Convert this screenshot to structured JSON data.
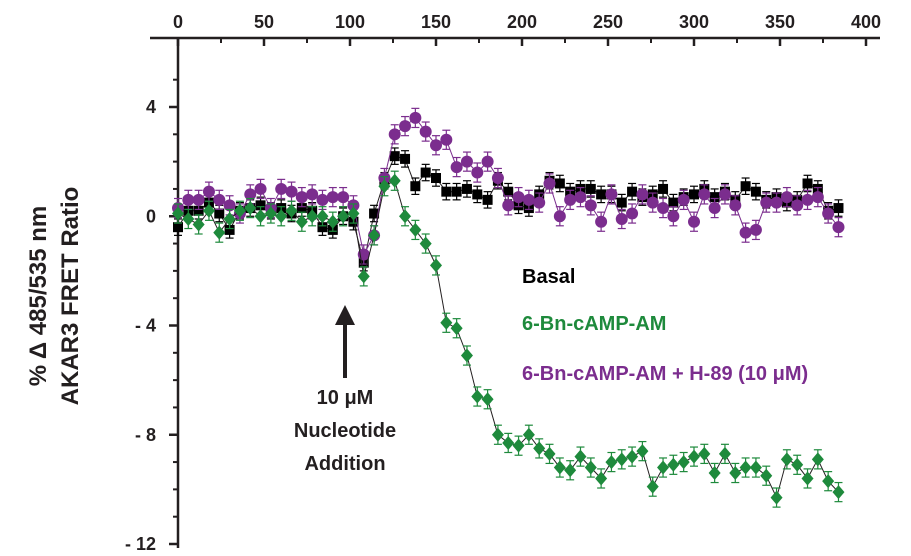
{
  "chart_data": {
    "type": "scatter",
    "xlabel": "",
    "ylabel_lines": [
      "% Δ 485/535 nm",
      "AKAR3 FRET Ratio"
    ],
    "xlim": [
      0,
      400
    ],
    "ylim": [
      -12,
      6
    ],
    "x_ticks": [
      0,
      50,
      100,
      150,
      200,
      250,
      300,
      350,
      400
    ],
    "y_ticks": [
      {
        "value": 4,
        "label": "4"
      },
      {
        "value": 0,
        "label": "0"
      },
      {
        "value": -4,
        "label": "- 4"
      },
      {
        "value": -8,
        "label": "- 8"
      },
      {
        "value": -12,
        "label": "- 12"
      }
    ],
    "x_axis_position": "top",
    "grid": false,
    "legend_position": "right",
    "series": [
      {
        "name": "Basal",
        "color": "#000000",
        "marker": "square",
        "error": 0.3,
        "x": [
          0,
          6,
          12,
          18,
          24,
          30,
          36,
          42,
          48,
          54,
          60,
          66,
          72,
          78,
          84,
          90,
          96,
          102,
          108,
          114,
          120,
          126,
          132,
          138,
          144,
          150,
          156,
          162,
          168,
          174,
          180,
          186,
          192,
          198,
          204,
          210,
          216,
          222,
          228,
          234,
          240,
          246,
          252,
          258,
          264,
          270,
          276,
          282,
          288,
          294,
          300,
          306,
          312,
          318,
          324,
          330,
          336,
          342,
          348,
          354,
          360,
          366,
          372,
          378,
          384
        ],
        "y": [
          -0.4,
          0.2,
          0.2,
          0.5,
          0.1,
          -0.5,
          0.2,
          0.3,
          0.4,
          0.2,
          0.3,
          0.1,
          0.3,
          0.2,
          -0.4,
          -0.5,
          0.0,
          -0.2,
          -1.7,
          0.1,
          1.3,
          2.2,
          2.1,
          1.1,
          1.6,
          1.4,
          0.9,
          0.9,
          1.0,
          0.8,
          0.6,
          1.3,
          0.9,
          0.4,
          0.3,
          0.8,
          1.3,
          1.2,
          0.9,
          1.0,
          1.0,
          0.8,
          0.8,
          0.5,
          0.9,
          0.7,
          0.8,
          1.0,
          0.5,
          0.7,
          0.8,
          1.0,
          0.7,
          0.9,
          0.6,
          1.1,
          0.9,
          0.6,
          0.7,
          0.5,
          0.6,
          1.2,
          1.0,
          0.2,
          0.3
        ]
      },
      {
        "name": "6-Bn-cAMP-AM",
        "color": "#1e8a3c",
        "marker": "diamond",
        "error": 0.35,
        "x": [
          0,
          6,
          12,
          18,
          24,
          30,
          36,
          42,
          48,
          54,
          60,
          66,
          72,
          78,
          84,
          90,
          96,
          102,
          108,
          114,
          120,
          126,
          132,
          138,
          144,
          150,
          156,
          162,
          168,
          174,
          180,
          186,
          192,
          198,
          204,
          210,
          216,
          222,
          228,
          234,
          240,
          246,
          252,
          258,
          264,
          270,
          276,
          282,
          288,
          294,
          300,
          306,
          312,
          318,
          324,
          330,
          336,
          342,
          348,
          354,
          360,
          366,
          372,
          378,
          384
        ],
        "y": [
          0.1,
          -0.1,
          -0.3,
          0.2,
          -0.6,
          -0.1,
          0.2,
          0.3,
          0.0,
          0.1,
          0.0,
          0.2,
          -0.2,
          0.0,
          0.0,
          -0.2,
          0.0,
          0.1,
          -2.2,
          -0.7,
          1.1,
          1.3,
          0.0,
          -0.5,
          -1.0,
          -1.8,
          -3.9,
          -4.1,
          -5.1,
          -6.6,
          -6.7,
          -8.0,
          -8.3,
          -8.4,
          -8.0,
          -8.5,
          -8.7,
          -9.2,
          -9.3,
          -8.8,
          -9.2,
          -9.6,
          -9.0,
          -8.9,
          -8.8,
          -8.6,
          -9.9,
          -9.2,
          -9.1,
          -9.0,
          -8.8,
          -8.7,
          -9.4,
          -8.7,
          -9.4,
          -9.2,
          -9.2,
          -9.5,
          -10.3,
          -8.9,
          -9.1,
          -9.6,
          -8.9,
          -9.7,
          -10.1
        ]
      },
      {
        "name": "6-Bn-cAMP-AM + H-89 (10 μM)",
        "color": "#7b2d8e",
        "marker": "circle",
        "error": 0.35,
        "x": [
          0,
          6,
          12,
          18,
          24,
          30,
          36,
          42,
          48,
          54,
          60,
          66,
          72,
          78,
          84,
          90,
          96,
          102,
          108,
          114,
          120,
          126,
          132,
          138,
          144,
          150,
          156,
          162,
          168,
          174,
          180,
          186,
          192,
          198,
          204,
          210,
          216,
          222,
          228,
          234,
          240,
          246,
          252,
          258,
          264,
          270,
          276,
          282,
          288,
          294,
          300,
          306,
          312,
          318,
          324,
          330,
          336,
          342,
          348,
          354,
          360,
          366,
          372,
          378,
          384
        ],
        "y": [
          0.3,
          0.6,
          0.6,
          0.9,
          0.6,
          0.4,
          0.1,
          0.8,
          1.0,
          0.3,
          1.0,
          0.9,
          0.7,
          0.8,
          0.6,
          0.7,
          0.7,
          0.4,
          -1.4,
          -0.7,
          1.4,
          3.0,
          3.3,
          3.6,
          3.1,
          2.6,
          2.8,
          1.8,
          2.0,
          1.6,
          2.0,
          1.4,
          0.4,
          0.7,
          0.6,
          0.5,
          1.2,
          0.0,
          0.6,
          0.7,
          0.4,
          -0.2,
          0.8,
          -0.1,
          0.1,
          0.8,
          0.5,
          0.3,
          0.0,
          0.6,
          -0.2,
          0.8,
          0.3,
          0.8,
          0.4,
          -0.6,
          -0.5,
          0.5,
          0.5,
          0.7,
          0.4,
          0.6,
          0.7,
          0.1,
          -0.4
        ]
      }
    ],
    "annotations": [
      {
        "text_lines": [
          "10 μM",
          "Nucleotide",
          "Addition"
        ],
        "arrow_x": 100,
        "arrow_from_y": -7.9,
        "arrow_to_y": -3.3
      }
    ]
  }
}
